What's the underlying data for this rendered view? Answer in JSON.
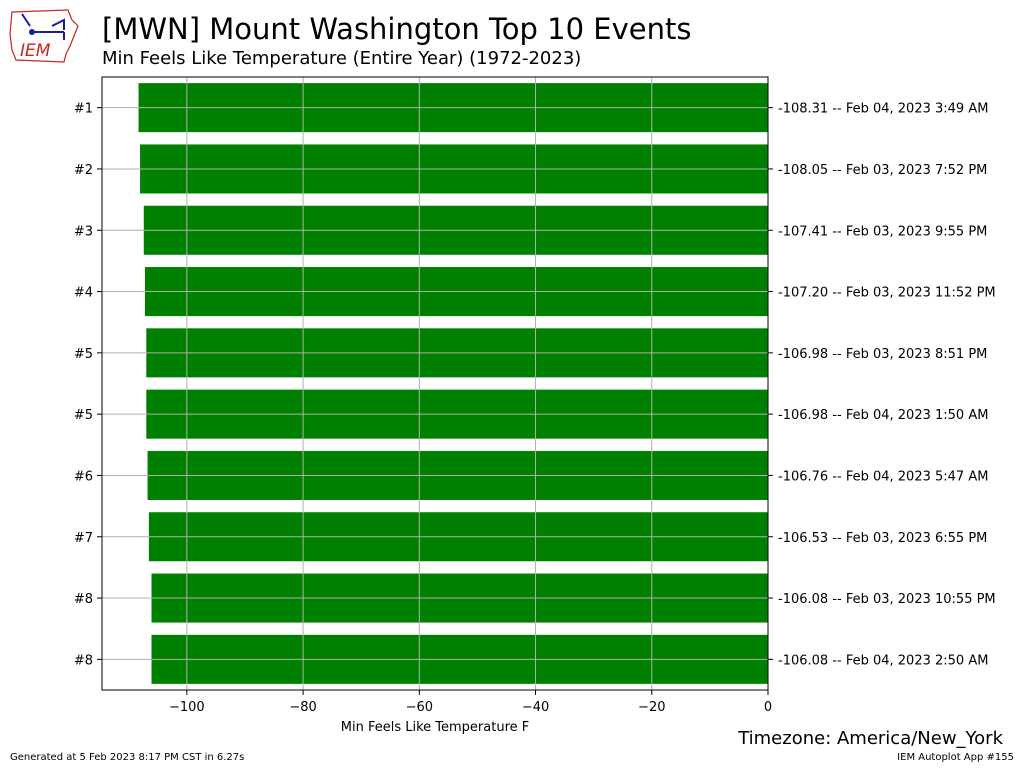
{
  "header": {
    "title": "[MWN] Mount Washington Top 10 Events",
    "subtitle": "Min Feels Like Temperature  (Entire Year) (1972-2023)",
    "logo_text": "IEM"
  },
  "footer": {
    "timezone": "Timezone: America/New_York",
    "generated": "Generated at 5 Feb 2023 8:17 PM CST in 6.27s",
    "app": "IEM Autoplot App #155"
  },
  "colors": {
    "bar": "#008000",
    "grid": "#b0b0b0",
    "logo_red": "#cc2222",
    "logo_blue": "#1a1aa8"
  },
  "chart_data": {
    "type": "bar",
    "orientation": "horizontal",
    "xlabel": "Min Feels Like Temperature F",
    "ylabel": "",
    "xlim": [
      -114.6,
      0
    ],
    "xticks": [
      -100,
      -80,
      -60,
      -40,
      -20,
      0
    ],
    "xtick_labels": [
      "−100",
      "−80",
      "−60",
      "−40",
      "−20",
      "0"
    ],
    "grid": true,
    "categories": [
      "#1",
      "#2",
      "#3",
      "#4",
      "#5",
      "#5",
      "#6",
      "#7",
      "#8",
      "#8"
    ],
    "values": [
      -108.31,
      -108.05,
      -107.41,
      -107.2,
      -106.98,
      -106.98,
      -106.76,
      -106.53,
      -106.08,
      -106.08
    ],
    "labels": [
      "-108.31 -- Feb 04, 2023 3:49 AM",
      "-108.05 -- Feb 03, 2023 7:52 PM",
      "-107.41 -- Feb 03, 2023 9:55 PM",
      "-107.20 -- Feb 03, 2023 11:52 PM",
      "-106.98 -- Feb 03, 2023 8:51 PM",
      "-106.98 -- Feb 04, 2023 1:50 AM",
      "-106.76 -- Feb 04, 2023 5:47 AM",
      "-106.53 -- Feb 03, 2023 6:55 PM",
      "-106.08 -- Feb 03, 2023 10:55 PM",
      "-106.08 -- Feb 04, 2023 2:50 AM"
    ]
  }
}
